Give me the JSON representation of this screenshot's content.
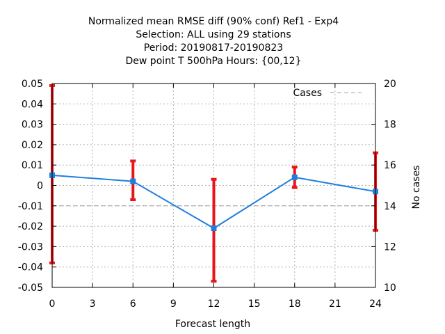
{
  "chart_data": {
    "type": "line",
    "title_lines": [
      "Normalized mean RMSE diff (90% conf) Ref1 - Exp4",
      "Selection: ALL using    29 stations",
      "Period: 20190817-20190823",
      "Dew point T 500hPa   Hours: {00,12}"
    ],
    "xlabel": "Forecast length",
    "ylabel": "",
    "y2label": "No cases",
    "x_ticks": [
      "0",
      "3",
      "6",
      "9",
      "12",
      "15",
      "18",
      "21",
      "24"
    ],
    "y_ticks": [
      "0.05",
      "0.04",
      "0.03",
      "0.02",
      "0.01",
      "0",
      "-0.01",
      "-0.02",
      "-0.03",
      "-0.04",
      "-0.05"
    ],
    "y2_ticks": [
      "20",
      "18",
      "16",
      "14",
      "12",
      "10"
    ],
    "xlim": [
      0,
      24
    ],
    "ylim": [
      -0.05,
      0.05
    ],
    "y2lim": [
      10,
      20
    ],
    "grid": true,
    "legend_position": "top-right",
    "series": [
      {
        "name": "",
        "color": "#1f7fdc",
        "x": [
          0,
          6,
          12,
          18,
          24
        ],
        "values": [
          0.005,
          0.002,
          -0.021,
          0.004,
          -0.003
        ],
        "error_low": [
          -0.038,
          -0.007,
          -0.047,
          -0.001,
          -0.022
        ],
        "error_high": [
          0.049,
          0.012,
          0.003,
          0.009,
          0.016
        ],
        "error_color": "#e8161b"
      },
      {
        "name": "Cases",
        "axis": "right",
        "color": "#a0a0a0",
        "dashed": true,
        "x": [
          0,
          6,
          12,
          18,
          24
        ],
        "values": [
          14,
          14,
          14,
          14,
          14
        ]
      }
    ]
  }
}
